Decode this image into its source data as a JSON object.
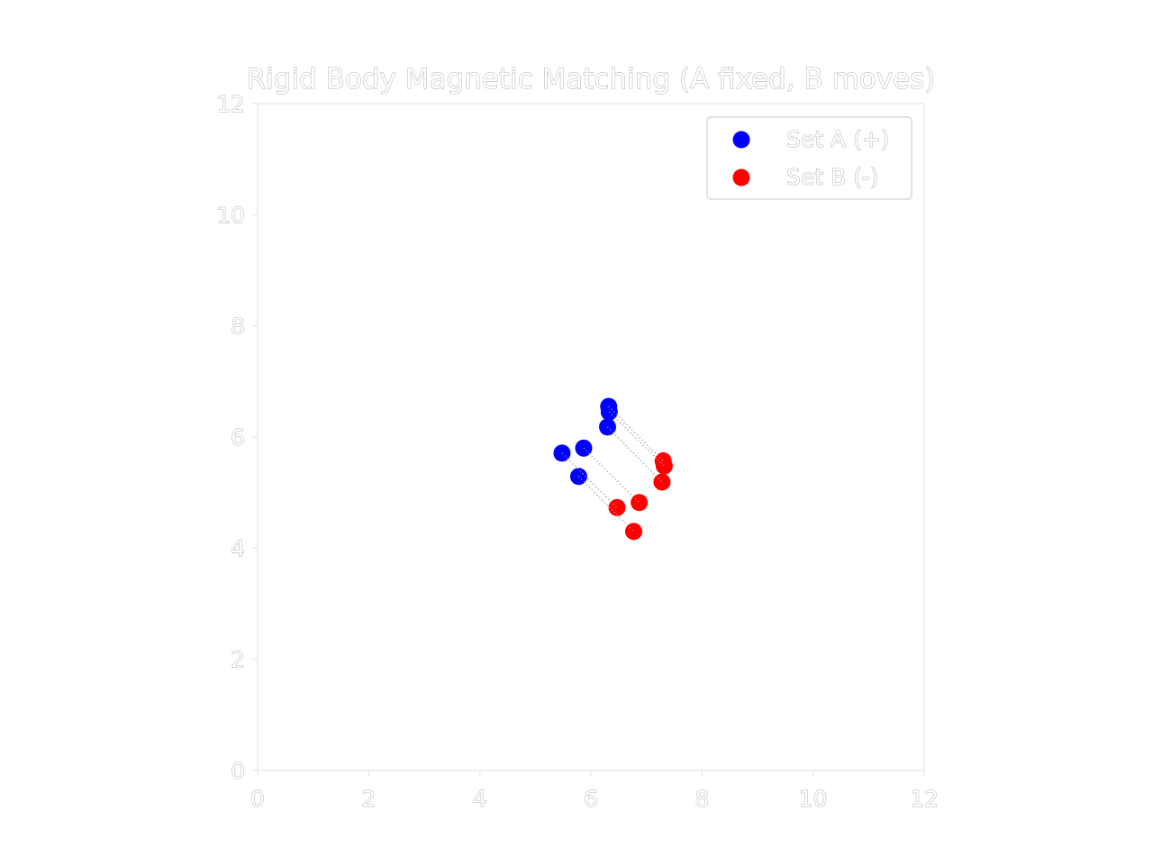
{
  "chart_data": {
    "type": "scatter",
    "title": "Rigid Body Magnetic Matching (A fixed, B moves)",
    "xlabel": "",
    "ylabel": "",
    "xlim": [
      0,
      12
    ],
    "ylim": [
      0,
      12
    ],
    "xticks": [
      "0",
      "2",
      "4",
      "6",
      "8",
      "10",
      "12"
    ],
    "yticks": [
      "0",
      "2",
      "4",
      "6",
      "8",
      "10",
      "12"
    ],
    "grid": false,
    "legend_position": "top-right",
    "series": [
      {
        "name": "Set A (+)",
        "color": "#0000ff",
        "points": [
          {
            "x": 6.32,
            "y": 6.55
          },
          {
            "x": 6.33,
            "y": 6.45
          },
          {
            "x": 6.3,
            "y": 6.18
          },
          {
            "x": 5.87,
            "y": 5.8
          },
          {
            "x": 5.48,
            "y": 5.71
          },
          {
            "x": 5.78,
            "y": 5.29
          }
        ]
      },
      {
        "name": "Set B (-)",
        "color": "#ff0000",
        "points": [
          {
            "x": 7.3,
            "y": 5.57
          },
          {
            "x": 7.32,
            "y": 5.48
          },
          {
            "x": 7.28,
            "y": 5.19
          },
          {
            "x": 6.87,
            "y": 4.82
          },
          {
            "x": 6.47,
            "y": 4.73
          },
          {
            "x": 6.77,
            "y": 4.3
          }
        ]
      }
    ],
    "connections": [
      [
        0,
        0
      ],
      [
        1,
        1
      ],
      [
        2,
        2
      ],
      [
        3,
        3
      ],
      [
        4,
        4
      ],
      [
        5,
        5
      ]
    ]
  }
}
